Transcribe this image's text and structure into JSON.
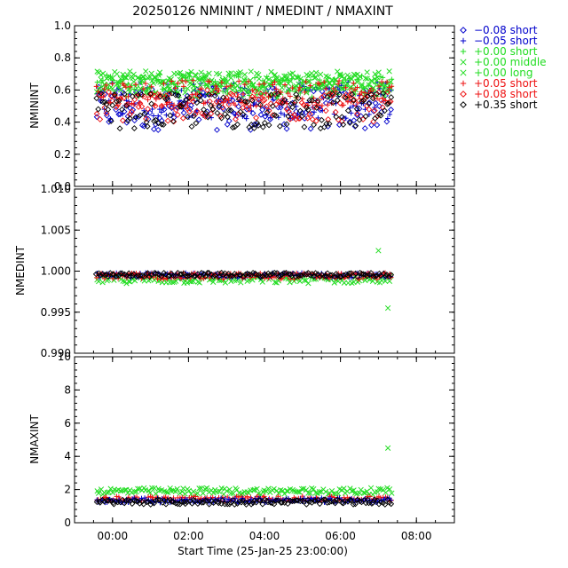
{
  "title": "20250126 NMININT / NMEDINT / NMAXINT",
  "xlabel": "Start Time (25-Jan-25 23:00:00)",
  "x_tick_labels": [
    "00:00",
    "02:00",
    "04:00",
    "06:00",
    "08:00"
  ],
  "colors": {
    "blue": "#0000cc",
    "green": "#22dd22",
    "red": "#ee1111",
    "black": "#000000"
  },
  "legend": [
    {
      "label": "−0.08 short",
      "symbol": "diamond",
      "color": "#0000cc"
    },
    {
      "label": "−0.05 short",
      "symbol": "plus",
      "color": "#0000cc"
    },
    {
      "label": "+0.00 short",
      "symbol": "plus",
      "color": "#22dd22"
    },
    {
      "label": "+0.00 middle",
      "symbol": "cross",
      "color": "#22dd22"
    },
    {
      "label": "+0.00 long",
      "symbol": "cross",
      "color": "#22dd22"
    },
    {
      "label": "+0.05 short",
      "symbol": "plus",
      "color": "#ee1111"
    },
    {
      "label": "+0.08 short",
      "symbol": "diamond",
      "color": "#ee1111"
    },
    {
      "label": "+0.35 short",
      "symbol": "diamond",
      "color": "#000000"
    }
  ],
  "chart_data": [
    {
      "type": "scatter",
      "ylabel": "NMININT",
      "xlim": [
        "23:00",
        "09:00"
      ],
      "ylim": [
        0.0,
        1.0
      ],
      "y_tick_labels": [
        "0.0",
        "0.2",
        "0.4",
        "0.6",
        "0.8",
        "1.0"
      ],
      "series": [
        {
          "name": "−0.08 short",
          "color": "#0000cc",
          "symbol": "diamond",
          "x_range": [
            "23:35",
            "07:20"
          ],
          "y_range": [
            0.35,
            0.62
          ]
        },
        {
          "name": "−0.05 short",
          "color": "#0000cc",
          "symbol": "plus",
          "x_range": [
            "23:35",
            "07:20"
          ],
          "y_range": [
            0.42,
            0.65
          ]
        },
        {
          "name": "+0.00 short",
          "color": "#22dd22",
          "symbol": "plus",
          "x_range": [
            "23:35",
            "07:20"
          ],
          "y_range": [
            0.55,
            0.7
          ]
        },
        {
          "name": "+0.00 middle",
          "color": "#22dd22",
          "symbol": "cross",
          "x_range": [
            "23:35",
            "07:20"
          ],
          "y_range": [
            0.6,
            0.72
          ]
        },
        {
          "name": "+0.00 long",
          "color": "#22dd22",
          "symbol": "cross",
          "x_range": [
            "23:35",
            "07:20"
          ],
          "y_range": [
            0.58,
            0.71
          ]
        },
        {
          "name": "+0.05 short",
          "color": "#ee1111",
          "symbol": "plus",
          "x_range": [
            "23:35",
            "07:20"
          ],
          "y_range": [
            0.5,
            0.66
          ]
        },
        {
          "name": "+0.08 short",
          "color": "#ee1111",
          "symbol": "diamond",
          "x_range": [
            "23:35",
            "07:20"
          ],
          "y_range": [
            0.4,
            0.6
          ]
        },
        {
          "name": "+0.35 short",
          "color": "#000000",
          "symbol": "diamond",
          "x_range": [
            "23:35",
            "07:20"
          ],
          "y_range": [
            0.36,
            0.58
          ]
        }
      ]
    },
    {
      "type": "scatter",
      "ylabel": "NMEDINT",
      "xlim": [
        "23:00",
        "09:00"
      ],
      "ylim": [
        0.99,
        1.01
      ],
      "y_tick_labels": [
        "0.990",
        "0.995",
        "1.000",
        "1.005",
        "1.010"
      ],
      "series": [
        {
          "name": "+0.00 long",
          "color": "#22dd22",
          "symbol": "cross",
          "x_range": [
            "23:35",
            "07:20"
          ],
          "y_range": [
            0.9985,
            0.9995
          ],
          "excursions": [
            {
              "x": "07:00",
              "y": 1.0025
            },
            {
              "x": "07:15",
              "y": 0.9955
            }
          ]
        },
        {
          "name": "−0.05 short",
          "color": "#0000cc",
          "symbol": "plus",
          "x_range": [
            "23:35",
            "07:20"
          ],
          "y_range": [
            0.9992,
            0.9998
          ]
        },
        {
          "name": "+0.05 short",
          "color": "#ee1111",
          "symbol": "plus",
          "x_range": [
            "23:35",
            "07:20"
          ],
          "y_range": [
            0.999,
            0.9998
          ]
        },
        {
          "name": "+0.35 short",
          "color": "#000000",
          "symbol": "diamond",
          "x_range": [
            "23:35",
            "07:20"
          ],
          "y_range": [
            0.9993,
            0.9998
          ]
        }
      ]
    },
    {
      "type": "scatter",
      "ylabel": "NMAXINT",
      "xlim": [
        "23:00",
        "09:00"
      ],
      "ylim": [
        0,
        10
      ],
      "y_tick_labels": [
        "0",
        "2",
        "4",
        "6",
        "8",
        "10"
      ],
      "series": [
        {
          "name": "+0.00 long",
          "color": "#22dd22",
          "symbol": "cross",
          "x_range": [
            "23:35",
            "07:20"
          ],
          "y_range": [
            1.7,
            2.1
          ],
          "excursions": [
            {
              "x": "07:15",
              "y": 4.5
            }
          ]
        },
        {
          "name": "+0.05 short",
          "color": "#ee1111",
          "symbol": "plus",
          "x_range": [
            "23:35",
            "07:20"
          ],
          "y_range": [
            1.3,
            1.6
          ]
        },
        {
          "name": "−0.05 short",
          "color": "#0000cc",
          "symbol": "plus",
          "x_range": [
            "23:35",
            "07:20"
          ],
          "y_range": [
            1.2,
            1.5
          ]
        },
        {
          "name": "+0.35 short",
          "color": "#000000",
          "symbol": "diamond",
          "x_range": [
            "23:35",
            "07:20"
          ],
          "y_range": [
            1.1,
            1.4
          ]
        }
      ]
    }
  ]
}
